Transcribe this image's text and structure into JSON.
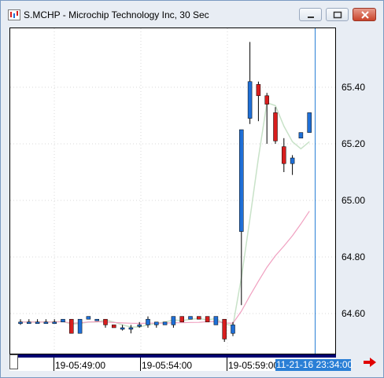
{
  "window": {
    "title": "S.MCHP - Microchip Technology Inc, 30 Sec"
  },
  "colors": {
    "up_candle": "#1f6fd6",
    "down_candle": "#d81e1e",
    "ma_fast": "#c8e2c8",
    "ma_slow": "#f0a0c0",
    "crosshair": "#2a7fd6"
  },
  "chart_data": {
    "type": "candlestick",
    "title": "S.MCHP - Microchip Technology Inc, 30 Sec",
    "y_tick_labels": [
      "65.40",
      "65.20",
      "65.00",
      "64.80",
      "64.60"
    ],
    "x_tick_labels": [
      "19-05:49:00",
      "19-05:54:00",
      "19-05:59:00"
    ],
    "cursor_time": "11-21-16 23:34:00",
    "ylim": [
      64.5,
      65.56
    ],
    "grid": true,
    "candles": [
      {
        "o": 64.57,
        "h": 64.58,
        "l": 64.56,
        "c": 64.57
      },
      {
        "o": 64.57,
        "h": 64.58,
        "l": 64.57,
        "c": 64.57
      },
      {
        "o": 64.57,
        "h": 64.58,
        "l": 64.57,
        "c": 64.57
      },
      {
        "o": 64.57,
        "h": 64.58,
        "l": 64.57,
        "c": 64.57
      },
      {
        "o": 64.57,
        "h": 64.58,
        "l": 64.57,
        "c": 64.57
      },
      {
        "o": 64.57,
        "h": 64.58,
        "l": 64.57,
        "c": 64.58
      },
      {
        "o": 64.58,
        "h": 64.58,
        "l": 64.53,
        "c": 64.53
      },
      {
        "o": 64.53,
        "h": 64.58,
        "l": 64.53,
        "c": 64.58
      },
      {
        "o": 64.58,
        "h": 64.59,
        "l": 64.58,
        "c": 64.59
      },
      {
        "o": 64.58,
        "h": 64.58,
        "l": 64.58,
        "c": 64.58
      },
      {
        "o": 64.58,
        "h": 64.58,
        "l": 64.55,
        "c": 64.56
      },
      {
        "o": 64.56,
        "h": 64.56,
        "l": 64.55,
        "c": 64.55
      },
      {
        "o": 64.55,
        "h": 64.56,
        "l": 64.54,
        "c": 64.55
      },
      {
        "o": 64.55,
        "h": 64.56,
        "l": 64.53,
        "c": 64.55
      },
      {
        "o": 64.56,
        "h": 64.57,
        "l": 64.55,
        "c": 64.56
      },
      {
        "o": 64.56,
        "h": 64.59,
        "l": 64.55,
        "c": 64.58
      },
      {
        "o": 64.56,
        "h": 64.57,
        "l": 64.55,
        "c": 64.57
      },
      {
        "o": 64.56,
        "h": 64.57,
        "l": 64.56,
        "c": 64.57
      },
      {
        "o": 64.56,
        "h": 64.59,
        "l": 64.55,
        "c": 64.59
      },
      {
        "o": 64.59,
        "h": 64.59,
        "l": 64.57,
        "c": 64.57
      },
      {
        "o": 64.58,
        "h": 64.59,
        "l": 64.58,
        "c": 64.59
      },
      {
        "o": 64.59,
        "h": 64.59,
        "l": 64.58,
        "c": 64.58
      },
      {
        "o": 64.59,
        "h": 64.59,
        "l": 64.57,
        "c": 64.57
      },
      {
        "o": 64.56,
        "h": 64.59,
        "l": 64.56,
        "c": 64.59
      },
      {
        "o": 64.58,
        "h": 64.58,
        "l": 64.5,
        "c": 64.51
      },
      {
        "o": 64.53,
        "h": 64.57,
        "l": 64.52,
        "c": 64.56
      },
      {
        "o": 64.89,
        "h": 65.25,
        "l": 64.63,
        "c": 65.25
      },
      {
        "o": 65.29,
        "h": 65.56,
        "l": 65.27,
        "c": 65.42
      },
      {
        "o": 65.41,
        "h": 65.42,
        "l": 65.28,
        "c": 65.37
      },
      {
        "o": 65.37,
        "h": 65.38,
        "l": 65.2,
        "c": 65.34
      },
      {
        "o": 65.31,
        "h": 65.33,
        "l": 65.2,
        "c": 65.21
      },
      {
        "o": 65.19,
        "h": 65.22,
        "l": 65.1,
        "c": 65.13
      },
      {
        "o": 65.13,
        "h": 65.16,
        "l": 65.09,
        "c": 65.15
      },
      {
        "o": 65.22,
        "h": 65.24,
        "l": 65.22,
        "c": 65.24
      },
      {
        "o": 65.24,
        "h": 65.31,
        "l": 65.24,
        "c": 65.31
      }
    ]
  }
}
